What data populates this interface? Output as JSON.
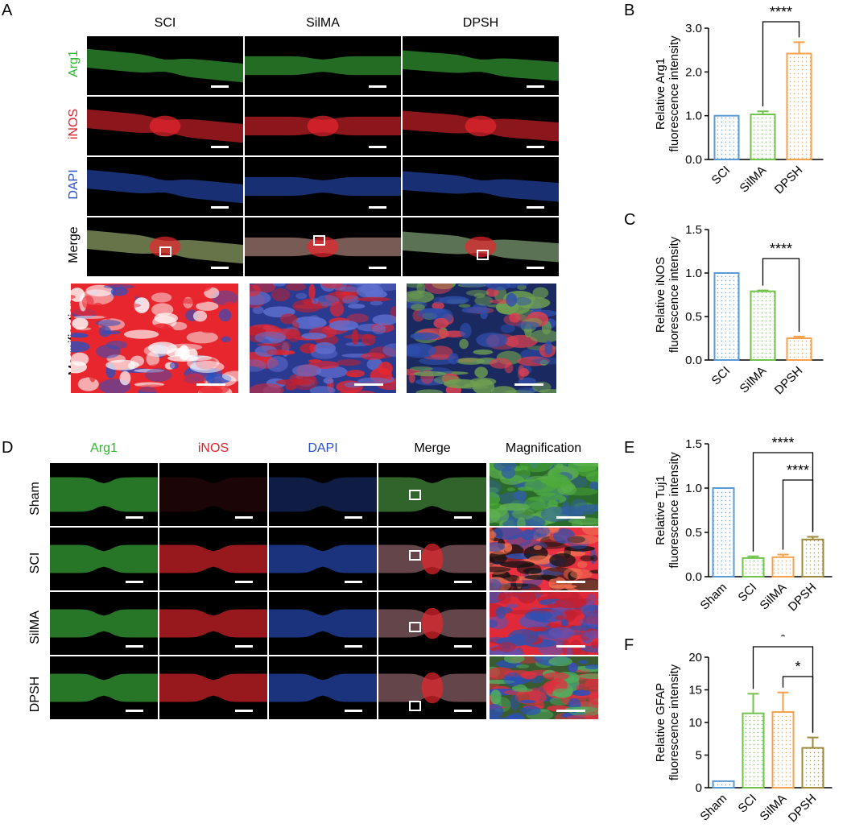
{
  "panels": {
    "A": "A",
    "B": "B",
    "C": "C",
    "D": "D",
    "E": "E",
    "F": "F"
  },
  "panel_a": {
    "columns": [
      "SCI",
      "SilMA",
      "DPSH"
    ],
    "rows": [
      "Arg1",
      "iNOS",
      "DAPI",
      "Merge",
      "Magnification"
    ],
    "row_colors": [
      "#2db52d",
      "#e0202a",
      "#2a50c8",
      "#000000",
      "#000000"
    ]
  },
  "panel_d": {
    "columns": [
      "Arg1",
      "iNOS",
      "DAPI",
      "Merge",
      "Magnification"
    ],
    "column_colors": [
      "#2db52d",
      "#e0202a",
      "#2a50c8",
      "#000000",
      "#000000"
    ],
    "rows": [
      "Sham",
      "SCI",
      "SilMA",
      "DPSH"
    ]
  },
  "colors": {
    "green": "#3cb43c",
    "red": "#e8262e",
    "blue": "#2a4fc0",
    "bar_blue": "#5b9bd5",
    "bar_green": "#70c24a",
    "bar_orange": "#f5a04a",
    "bar_olive": "#9c8a3a"
  },
  "chart_data": [
    {
      "id": "B",
      "type": "bar",
      "ylabel": [
        "Relative Arg1",
        "fluorescence intensity"
      ],
      "categories": [
        "SCI",
        "SilMA",
        "DPSH"
      ],
      "values": [
        1.0,
        1.03,
        2.42
      ],
      "errors": [
        0,
        0.07,
        0.26
      ],
      "ylim": [
        0,
        3.0
      ],
      "yticks": [
        "0.0",
        "1.0",
        "2.0",
        "3.0"
      ],
      "sig": [
        {
          "from": 1,
          "to": 2,
          "label": "****"
        }
      ]
    },
    {
      "id": "C",
      "type": "bar",
      "ylabel": [
        "Relative iNOS",
        "fluorescence intensity"
      ],
      "categories": [
        "SCI",
        "SilMA",
        "DPSH"
      ],
      "values": [
        1.0,
        0.79,
        0.25
      ],
      "errors": [
        0,
        0.01,
        0.02
      ],
      "ylim": [
        0,
        1.5
      ],
      "yticks": [
        "0.0",
        "0.5",
        "1.0",
        "1.5"
      ],
      "sig": [
        {
          "from": 1,
          "to": 2,
          "label": "****"
        }
      ]
    },
    {
      "id": "E",
      "type": "bar",
      "ylabel": [
        "Relative Tuj1",
        "fluorescence intensity"
      ],
      "categories": [
        "Sham",
        "SCI",
        "SilMA",
        "DPSH"
      ],
      "values": [
        1.0,
        0.21,
        0.22,
        0.42
      ],
      "errors": [
        0,
        0.02,
        0.03,
        0.03
      ],
      "ylim": [
        0,
        1.5
      ],
      "yticks": [
        "0.0",
        "0.5",
        "1.0",
        "1.5"
      ],
      "sig": [
        {
          "from": 1,
          "to": 3,
          "label": "****"
        },
        {
          "from": 2,
          "to": 3,
          "label": "****"
        }
      ]
    },
    {
      "id": "F",
      "type": "bar",
      "ylabel": [
        "Relative GFAP",
        "fluorescence intensity"
      ],
      "categories": [
        "Sham",
        "SCI",
        "SilMA",
        "DPSH"
      ],
      "values": [
        1.0,
        11.4,
        11.6,
        6.1
      ],
      "errors": [
        0,
        3.0,
        3.0,
        1.6
      ],
      "ylim": [
        0,
        20
      ],
      "yticks": [
        "0",
        "5",
        "10",
        "15",
        "20"
      ],
      "sig": [
        {
          "from": 1,
          "to": 3,
          "label": "*"
        },
        {
          "from": 2,
          "to": 3,
          "label": "*"
        }
      ]
    }
  ]
}
